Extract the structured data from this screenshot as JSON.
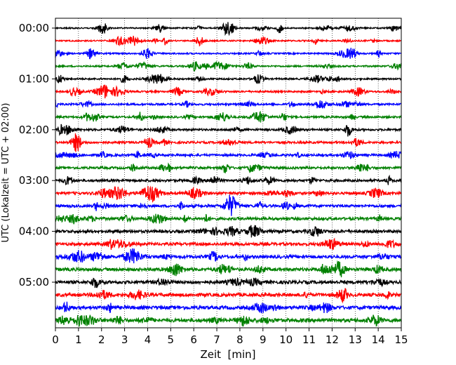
{
  "chart_data": {
    "type": "line",
    "xlabel": "Zeit  [min]",
    "ylabel": "UTC (Lokalzeit = UTC + 02:00)",
    "xlim": [
      0,
      15
    ],
    "x_ticks": [
      "0",
      "1",
      "2",
      "3",
      "4",
      "5",
      "6",
      "7",
      "8",
      "9",
      "10",
      "11",
      "12",
      "13",
      "14",
      "15"
    ],
    "y_ticks": [
      "00:00",
      "01:00",
      "02:00",
      "03:00",
      "04:00",
      "05:00"
    ],
    "grid": "vertical dotted lines at each minute",
    "trace_count": 24,
    "trace_interval_min": 15,
    "trace_colors": [
      "#000000",
      "#ff0000",
      "#0000ff",
      "#008000"
    ],
    "legend": "none"
  }
}
